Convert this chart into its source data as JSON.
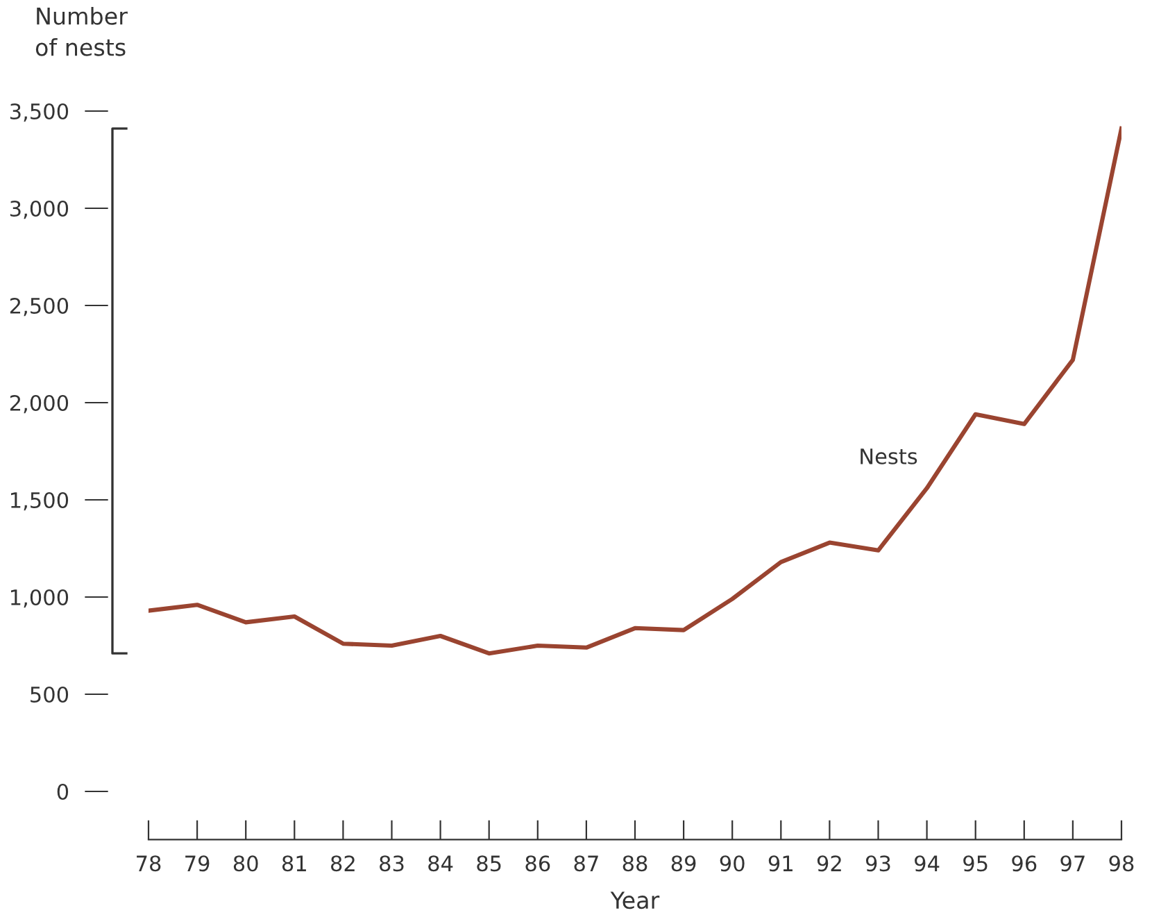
{
  "chart_data": {
    "type": "line",
    "ylabel": "Number\nof nests",
    "xlabel": "Year",
    "x": [
      78,
      79,
      80,
      81,
      82,
      83,
      84,
      85,
      86,
      87,
      88,
      89,
      90,
      91,
      92,
      93,
      94,
      95,
      96,
      97,
      98
    ],
    "series": [
      {
        "color": "#9a4430",
        "values": [
          930,
          960,
          870,
          900,
          760,
          750,
          800,
          710,
          750,
          740,
          840,
          830,
          990,
          1180,
          1280,
          1240,
          1560,
          1940,
          1890,
          2220,
          3410
        ]
      }
    ],
    "xlim": [
      78,
      98
    ],
    "xticks": [
      78,
      79,
      80,
      81,
      82,
      83,
      84,
      85,
      86,
      87,
      88,
      89,
      90,
      91,
      92,
      93,
      94,
      95,
      96,
      97,
      98
    ],
    "ylim": [
      0,
      3500
    ],
    "yticks": [
      {
        "value": 0,
        "label": "0"
      },
      {
        "value": 500,
        "label": "500"
      },
      {
        "value": 1000,
        "label": "1,000"
      },
      {
        "value": 1500,
        "label": "1,500"
      },
      {
        "value": 2000,
        "label": "2,000"
      },
      {
        "value": 2500,
        "label": "2,500"
      },
      {
        "value": 3000,
        "label": "3,000"
      },
      {
        "value": 3500,
        "label": "3,500"
      }
    ],
    "annotations": [
      "Nests"
    ],
    "grid": false,
    "legend": false,
    "marker": "none",
    "line_style": "solid"
  }
}
